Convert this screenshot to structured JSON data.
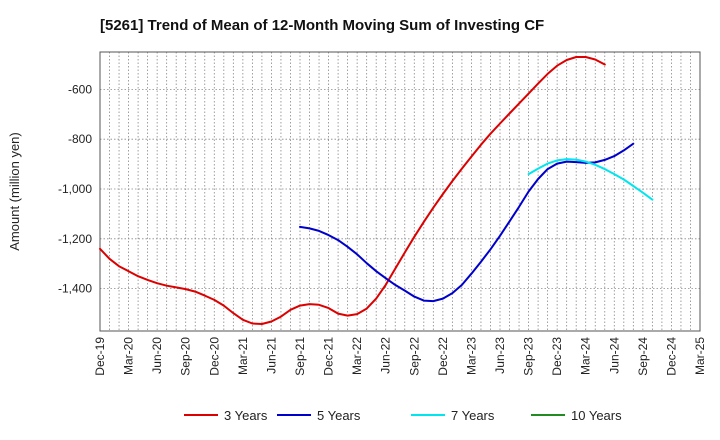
{
  "chart_data": {
    "type": "line",
    "title": "[5261]  Trend of Mean of 12-Month Moving Sum of Investing CF",
    "ylabel": "Amount (million yen)",
    "xlabel": "",
    "ylim": [
      -1570,
      -450
    ],
    "yticks": [
      -600,
      -800,
      -1000,
      -1200,
      -1400
    ],
    "ytick_labels": [
      "-600",
      "-800",
      "-1,000",
      "-1,200",
      "-1,400"
    ],
    "x_categories": [
      "Dec-19",
      "Mar-20",
      "Jun-20",
      "Sep-20",
      "Dec-20",
      "Mar-21",
      "Jun-21",
      "Sep-21",
      "Dec-21",
      "Mar-22",
      "Jun-22",
      "Sep-22",
      "Dec-22",
      "Mar-23",
      "Jun-23",
      "Sep-23",
      "Dec-23",
      "Mar-24",
      "Jun-24",
      "Sep-24",
      "Dec-24",
      "Mar-25"
    ],
    "grid": true,
    "legend_position": "bottom",
    "series": [
      {
        "name": "3 Years",
        "color": "#dd0000",
        "start_index": 0,
        "values": [
          -1240,
          -1280,
          -1310,
          -1330,
          -1350,
          -1365,
          -1378,
          -1388,
          -1395,
          -1402,
          -1412,
          -1428,
          -1445,
          -1468,
          -1498,
          -1525,
          -1540,
          -1542,
          -1532,
          -1512,
          -1485,
          -1468,
          -1462,
          -1465,
          -1478,
          -1500,
          -1508,
          -1502,
          -1480,
          -1440,
          -1385,
          -1320,
          -1255,
          -1192,
          -1132,
          -1075,
          -1020,
          -968,
          -918,
          -870,
          -822,
          -778,
          -737,
          -697,
          -657,
          -617,
          -577,
          -538,
          -505,
          -482,
          -470,
          -470,
          -480,
          -500
        ]
      },
      {
        "name": "5 Years",
        "color": "#0000cc",
        "start_index": 21,
        "values": [
          -1152,
          -1158,
          -1168,
          -1185,
          -1205,
          -1232,
          -1262,
          -1298,
          -1330,
          -1358,
          -1385,
          -1408,
          -1432,
          -1448,
          -1450,
          -1440,
          -1418,
          -1385,
          -1340,
          -1292,
          -1242,
          -1188,
          -1130,
          -1072,
          -1010,
          -960,
          -920,
          -898,
          -890,
          -892,
          -895,
          -893,
          -883,
          -868,
          -845,
          -818
        ]
      },
      {
        "name": "7 Years",
        "color": "#00e5ee",
        "start_index": 45,
        "values": [
          -940,
          -918,
          -898,
          -885,
          -880,
          -882,
          -890,
          -903,
          -920,
          -940,
          -962,
          -988,
          -1015,
          -1043
        ]
      },
      {
        "name": "10 Years",
        "color": "#228b22",
        "start_index": 0,
        "values": []
      }
    ]
  }
}
